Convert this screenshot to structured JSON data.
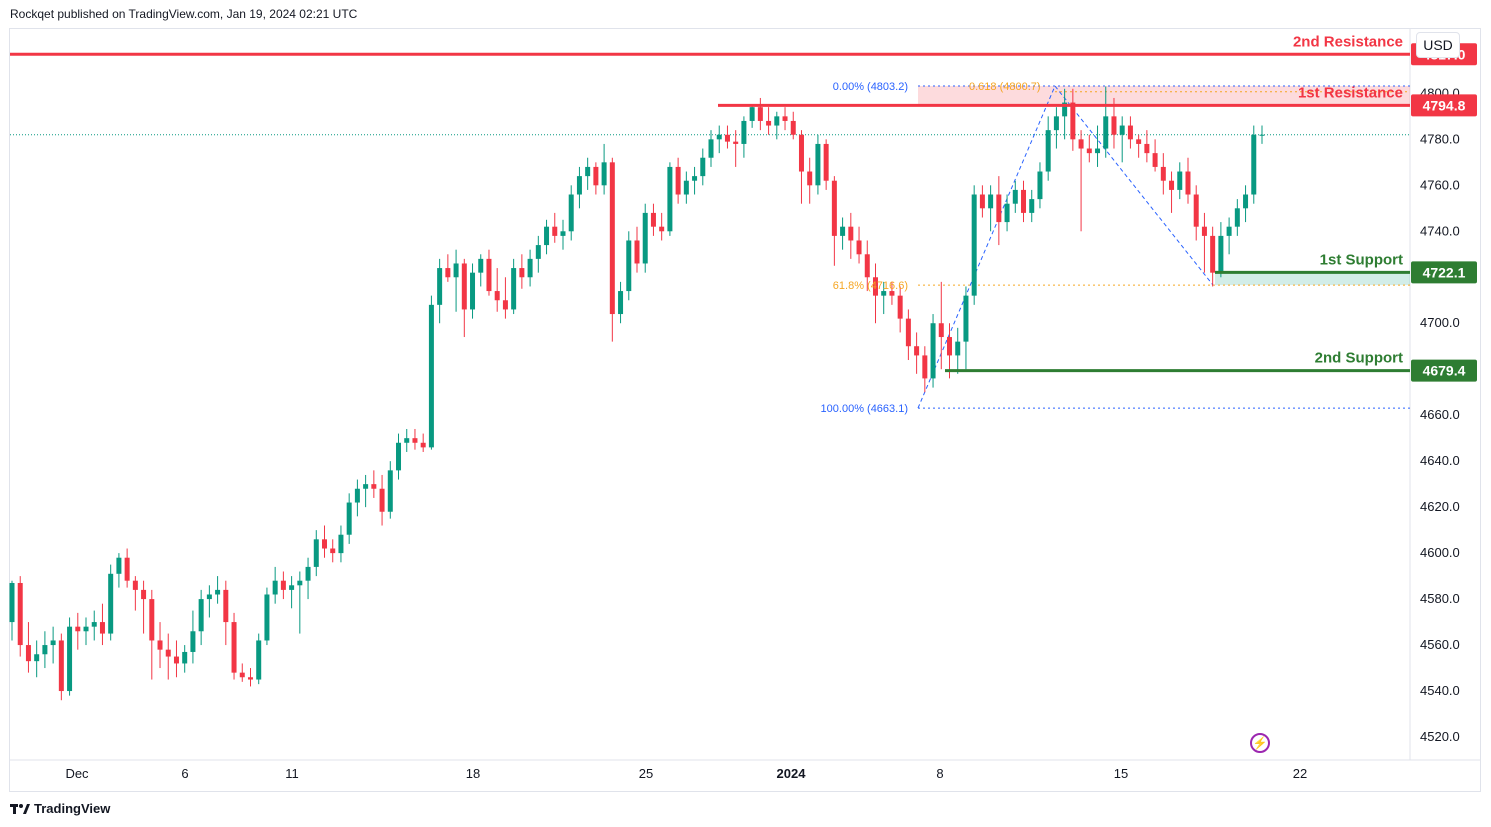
{
  "header": {
    "text": "Rockqet published on TradingView.com, Jan 19, 2024 02:21 UTC"
  },
  "footer": {
    "brand": "TradingView",
    "logo_icon": "tradingview-logo-icon"
  },
  "currency": "USD",
  "colors": {
    "up": "#089981",
    "down": "#f23645",
    "support": "#2e7d32",
    "resistance": "#f23645",
    "fib_blue": "#2962ff",
    "fib_orange": "#f5a623"
  },
  "chart_data": {
    "type": "candlestick",
    "title": "",
    "ylim": [
      4510,
      4828
    ],
    "y_ticks": [
      "4520.0",
      "4540.0",
      "4560.0",
      "4580.0",
      "4600.0",
      "4620.0",
      "4640.0",
      "4660.0",
      "4680.0",
      "4700.0",
      "4720.0",
      "4740.0",
      "4760.0",
      "4780.0",
      "4800.0"
    ],
    "x_ticks": [
      {
        "label": "Dec",
        "bold": false
      },
      {
        "label": "6",
        "bold": false
      },
      {
        "label": "11",
        "bold": false
      },
      {
        "label": "18",
        "bold": false
      },
      {
        "label": "25",
        "bold": false
      },
      {
        "label": "2024",
        "bold": true
      },
      {
        "label": "8",
        "bold": false
      },
      {
        "label": "15",
        "bold": false
      },
      {
        "label": "22",
        "bold": false
      }
    ],
    "current_price": 4782,
    "levels": [
      {
        "name": "2nd Resistance",
        "price": 4817.0,
        "label": "4817.0",
        "kind": "resistance"
      },
      {
        "name": "1st Resistance",
        "price": 4794.8,
        "label": "4794.8",
        "kind": "resistance"
      },
      {
        "name": "1st Support",
        "price": 4722.1,
        "label": "4722.1",
        "kind": "support"
      },
      {
        "name": "2nd Support",
        "price": 4679.4,
        "label": "4679.4",
        "kind": "support"
      }
    ],
    "fib_labels": [
      {
        "text": "0.00% (4803.2)",
        "price": 4803.2
      },
      {
        "text": "0.618 (4800.7)",
        "price": 4800.7
      },
      {
        "text": "61.8% (4716.6)",
        "price": 4716.6
      },
      {
        "text": "100.00% (4663.1)",
        "price": 4663.1
      }
    ],
    "candles": [
      [
        4570,
        4588,
        4562,
        4587
      ],
      [
        4587,
        4590,
        4555,
        4560
      ],
      [
        4560,
        4570,
        4548,
        4553
      ],
      [
        4553,
        4562,
        4546,
        4556
      ],
      [
        4556,
        4566,
        4550,
        4560
      ],
      [
        4560,
        4568,
        4552,
        4562
      ],
      [
        4562,
        4565,
        4536,
        4540
      ],
      [
        4540,
        4572,
        4538,
        4568
      ],
      [
        4568,
        4574,
        4558,
        4566
      ],
      [
        4566,
        4572,
        4560,
        4568
      ],
      [
        4568,
        4575,
        4562,
        4570
      ],
      [
        4570,
        4578,
        4560,
        4565
      ],
      [
        4565,
        4595,
        4562,
        4591
      ],
      [
        4591,
        4600,
        4585,
        4598
      ],
      [
        4598,
        4602,
        4585,
        4588
      ],
      [
        4588,
        4590,
        4575,
        4584
      ],
      [
        4584,
        4588,
        4565,
        4580
      ],
      [
        4580,
        4584,
        4545,
        4562
      ],
      [
        4562,
        4570,
        4550,
        4558
      ],
      [
        4558,
        4565,
        4545,
        4555
      ],
      [
        4555,
        4562,
        4546,
        4552
      ],
      [
        4552,
        4560,
        4548,
        4557
      ],
      [
        4557,
        4575,
        4552,
        4566
      ],
      [
        4566,
        4584,
        4560,
        4580
      ],
      [
        4580,
        4586,
        4572,
        4582
      ],
      [
        4582,
        4590,
        4578,
        4584
      ],
      [
        4584,
        4588,
        4560,
        4570
      ],
      [
        4570,
        4574,
        4545,
        4548
      ],
      [
        4548,
        4552,
        4544,
        4546
      ],
      [
        4546,
        4550,
        4542,
        4545
      ],
      [
        4545,
        4565,
        4543,
        4562
      ],
      [
        4562,
        4585,
        4560,
        4582
      ],
      [
        4582,
        4594,
        4578,
        4588
      ],
      [
        4588,
        4592,
        4580,
        4584
      ],
      [
        4584,
        4590,
        4576,
        4586
      ],
      [
        4586,
        4592,
        4565,
        4588
      ],
      [
        4588,
        4598,
        4580,
        4594
      ],
      [
        4594,
        4610,
        4590,
        4606
      ],
      [
        4606,
        4612,
        4598,
        4602
      ],
      [
        4602,
        4606,
        4596,
        4600
      ],
      [
        4600,
        4612,
        4596,
        4608
      ],
      [
        4608,
        4626,
        4604,
        4622
      ],
      [
        4622,
        4632,
        4616,
        4628
      ],
      [
        4628,
        4634,
        4620,
        4630
      ],
      [
        4630,
        4636,
        4624,
        4628
      ],
      [
        4628,
        4634,
        4612,
        4618
      ],
      [
        4618,
        4640,
        4615,
        4636
      ],
      [
        4636,
        4652,
        4632,
        4648
      ],
      [
        4648,
        4654,
        4644,
        4650
      ],
      [
        4650,
        4654,
        4645,
        4648
      ],
      [
        4648,
        4652,
        4644,
        4646
      ],
      [
        4646,
        4712,
        4645,
        4708
      ],
      [
        4708,
        4728,
        4700,
        4724
      ],
      [
        4724,
        4730,
        4718,
        4720
      ],
      [
        4720,
        4732,
        4705,
        4726
      ],
      [
        4726,
        4728,
        4694,
        4706
      ],
      [
        4706,
        4726,
        4702,
        4722
      ],
      [
        4722,
        4730,
        4716,
        4728
      ],
      [
        4728,
        4732,
        4712,
        4714
      ],
      [
        4714,
        4724,
        4705,
        4710
      ],
      [
        4710,
        4720,
        4702,
        4706
      ],
      [
        4706,
        4728,
        4704,
        4724
      ],
      [
        4724,
        4730,
        4715,
        4720
      ],
      [
        4720,
        4732,
        4716,
        4728
      ],
      [
        4728,
        4738,
        4722,
        4734
      ],
      [
        4734,
        4745,
        4730,
        4742
      ],
      [
        4742,
        4748,
        4735,
        4738
      ],
      [
        4738,
        4745,
        4732,
        4740
      ],
      [
        4740,
        4760,
        4736,
        4756
      ],
      [
        4756,
        4768,
        4750,
        4764
      ],
      [
        4764,
        4772,
        4758,
        4768
      ],
      [
        4768,
        4770,
        4756,
        4760
      ],
      [
        4760,
        4778,
        4756,
        4770
      ],
      [
        4770,
        4772,
        4692,
        4704
      ],
      [
        4704,
        4718,
        4700,
        4714
      ],
      [
        4714,
        4740,
        4710,
        4736
      ],
      [
        4736,
        4742,
        4722,
        4726
      ],
      [
        4726,
        4752,
        4722,
        4748
      ],
      [
        4748,
        4752,
        4738,
        4742
      ],
      [
        4742,
        4748,
        4736,
        4740
      ],
      [
        4740,
        4770,
        4738,
        4768
      ],
      [
        4768,
        4772,
        4752,
        4756
      ],
      [
        4756,
        4766,
        4752,
        4762
      ],
      [
        4762,
        4768,
        4756,
        4764
      ],
      [
        4764,
        4776,
        4760,
        4772
      ],
      [
        4772,
        4784,
        4768,
        4780
      ],
      [
        4780,
        4786,
        4774,
        4782
      ],
      [
        4782,
        4786,
        4776,
        4779
      ],
      [
        4779,
        4784,
        4768,
        4778
      ],
      [
        4778,
        4790,
        4772,
        4788
      ],
      [
        4788,
        4795,
        4785,
        4794
      ],
      [
        4794,
        4798,
        4784,
        4788
      ],
      [
        4788,
        4794,
        4782,
        4786
      ],
      [
        4786,
        4792,
        4780,
        4790
      ],
      [
        4790,
        4794,
        4784,
        4788
      ],
      [
        4788,
        4792,
        4780,
        4782
      ],
      [
        4782,
        4784,
        4752,
        4766
      ],
      [
        4766,
        4772,
        4752,
        4760
      ],
      [
        4760,
        4782,
        4756,
        4778
      ],
      [
        4778,
        4780,
        4758,
        4762
      ],
      [
        4762,
        4764,
        4725,
        4738
      ],
      [
        4738,
        4746,
        4732,
        4742
      ],
      [
        4742,
        4748,
        4728,
        4736
      ],
      [
        4736,
        4742,
        4726,
        4730
      ],
      [
        4730,
        4736,
        4714,
        4720
      ],
      [
        4720,
        4726,
        4700,
        4712
      ],
      [
        4712,
        4718,
        4704,
        4714
      ],
      [
        4714,
        4718,
        4708,
        4712
      ],
      [
        4712,
        4716,
        4696,
        4702
      ],
      [
        4702,
        4706,
        4684,
        4690
      ],
      [
        4690,
        4696,
        4678,
        4686
      ],
      [
        4686,
        4690,
        4670,
        4676
      ],
      [
        4676,
        4704,
        4672,
        4700
      ],
      [
        4700,
        4718,
        4680,
        4694
      ],
      [
        4694,
        4700,
        4676,
        4686
      ],
      [
        4686,
        4698,
        4678,
        4692
      ],
      [
        4692,
        4716,
        4680,
        4712
      ],
      [
        4712,
        4760,
        4708,
        4756
      ],
      [
        4756,
        4760,
        4746,
        4750
      ],
      [
        4750,
        4760,
        4740,
        4756
      ],
      [
        4756,
        4764,
        4734,
        4744
      ],
      [
        4744,
        4756,
        4740,
        4752
      ],
      [
        4752,
        4762,
        4748,
        4758
      ],
      [
        4758,
        4762,
        4744,
        4748
      ],
      [
        4748,
        4758,
        4744,
        4754
      ],
      [
        4754,
        4770,
        4750,
        4766
      ],
      [
        4766,
        4790,
        4762,
        4784
      ],
      [
        4784,
        4794,
        4776,
        4790
      ],
      [
        4790,
        4802,
        4780,
        4796
      ],
      [
        4796,
        4802,
        4775,
        4780
      ],
      [
        4780,
        4784,
        4740,
        4776
      ],
      [
        4776,
        4782,
        4770,
        4774
      ],
      [
        4774,
        4786,
        4768,
        4776
      ],
      [
        4776,
        4803,
        4772,
        4790
      ],
      [
        4790,
        4798,
        4776,
        4782
      ],
      [
        4782,
        4790,
        4770,
        4786
      ],
      [
        4786,
        4790,
        4776,
        4780
      ],
      [
        4780,
        4782,
        4772,
        4778
      ],
      [
        4778,
        4784,
        4770,
        4774
      ],
      [
        4774,
        4780,
        4766,
        4768
      ],
      [
        4768,
        4774,
        4756,
        4762
      ],
      [
        4762,
        4766,
        4748,
        4758
      ],
      [
        4758,
        4770,
        4754,
        4766
      ],
      [
        4766,
        4772,
        4752,
        4756
      ],
      [
        4756,
        4760,
        4736,
        4742
      ],
      [
        4742,
        4748,
        4722,
        4738
      ],
      [
        4738,
        4742,
        4716,
        4722
      ],
      [
        4722,
        4744,
        4720,
        4738
      ],
      [
        4738,
        4746,
        4730,
        4742
      ],
      [
        4742,
        4754,
        4738,
        4750
      ],
      [
        4750,
        4760,
        4744,
        4756
      ],
      [
        4756,
        4786,
        4752,
        4782
      ],
      [
        4782,
        4786,
        4778,
        4782
      ]
    ]
  }
}
